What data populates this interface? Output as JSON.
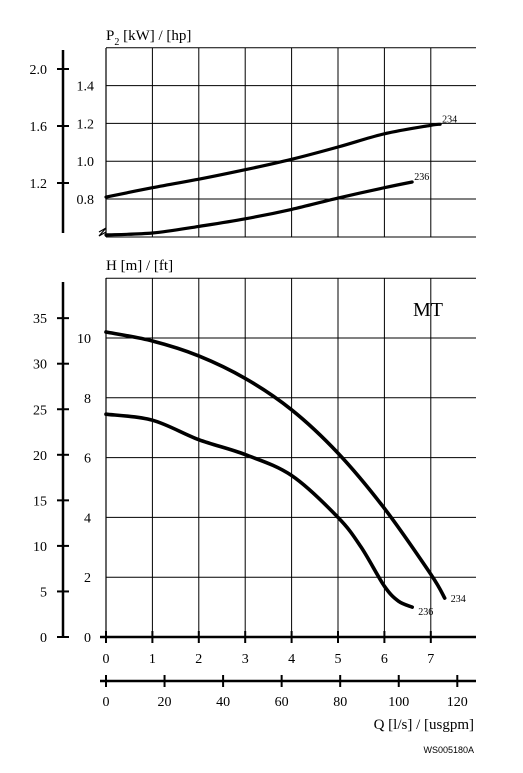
{
  "chart_data": [
    {
      "type": "line",
      "title": "",
      "ylabel": "P2 [kW] / [hp]",
      "ylabel_parts": {
        "base": "P",
        "sub": "2",
        "rest": " [kW] / [hp]"
      },
      "grid": true,
      "x": {
        "label": "Q [l/s] / [usgpm]",
        "range": [
          0,
          7.5
        ],
        "ticks": [
          0,
          1,
          2,
          3,
          4,
          5,
          6,
          7
        ]
      },
      "y_kw": {
        "unit": "kW",
        "range": [
          0.6,
          1.6
        ],
        "tick_values": [
          0.8,
          1.0,
          1.2,
          1.4
        ],
        "tick_labels": [
          "0.8",
          "1.0",
          "1.2",
          "1.4"
        ]
      },
      "y_hp": {
        "unit": "hp",
        "tick_values": [
          1.2,
          1.6,
          2.0
        ],
        "tick_labels": [
          "1.2",
          "1.6",
          "2.0"
        ]
      },
      "axis_break": true,
      "series": [
        {
          "name": "234",
          "x": [
            0,
            1,
            2,
            3,
            4,
            5,
            6,
            7,
            7.2
          ],
          "y": [
            0.81,
            0.86,
            0.905,
            0.955,
            1.01,
            1.075,
            1.145,
            1.19,
            1.195
          ]
        },
        {
          "name": "236",
          "x": [
            0,
            1,
            2,
            3,
            4,
            5,
            6,
            6.6
          ],
          "y": [
            0.61,
            0.62,
            0.655,
            0.695,
            0.745,
            0.805,
            0.86,
            0.89
          ]
        }
      ]
    },
    {
      "type": "line",
      "title": "",
      "ylabel": "H [m] / [ft]",
      "annotation": "MT",
      "grid": true,
      "x": {
        "label": "Q [l/s] / [usgpm]",
        "range": [
          0,
          7.5
        ],
        "ticks": [
          0,
          1,
          2,
          3,
          4,
          5,
          6,
          7
        ],
        "tick_labels": [
          "0",
          "1",
          "2",
          "3",
          "4",
          "5",
          "6",
          "7"
        ]
      },
      "x_usgpm": {
        "ticks": [
          0,
          20,
          40,
          60,
          80,
          100,
          120
        ],
        "tick_labels": [
          "0",
          "20",
          "40",
          "60",
          "80",
          "100",
          "120"
        ]
      },
      "y_m": {
        "range": [
          0,
          12
        ],
        "ticks": [
          0,
          2,
          4,
          6,
          8,
          10
        ],
        "tick_labels": [
          "0",
          "2",
          "4",
          "6",
          "8",
          "10"
        ]
      },
      "y_ft": {
        "ticks": [
          0,
          5,
          10,
          15,
          20,
          25,
          30,
          35
        ],
        "tick_labels": [
          "0",
          "5",
          "10",
          "15",
          "20",
          "25",
          "30",
          "35"
        ]
      },
      "series": [
        {
          "name": "234",
          "x": [
            0,
            1,
            2,
            3,
            4,
            5,
            6,
            7,
            7.3
          ],
          "y": [
            10.2,
            9.9,
            9.4,
            8.65,
            7.6,
            6.15,
            4.3,
            2.1,
            1.3
          ]
        },
        {
          "name": "236",
          "x": [
            0,
            1,
            2,
            3,
            4,
            5,
            5.5,
            6,
            6.3,
            6.6
          ],
          "y": [
            7.45,
            7.25,
            6.6,
            6.1,
            5.4,
            4.0,
            3.0,
            1.7,
            1.2,
            1.0
          ]
        }
      ]
    }
  ],
  "figure_code": "WS005180A"
}
